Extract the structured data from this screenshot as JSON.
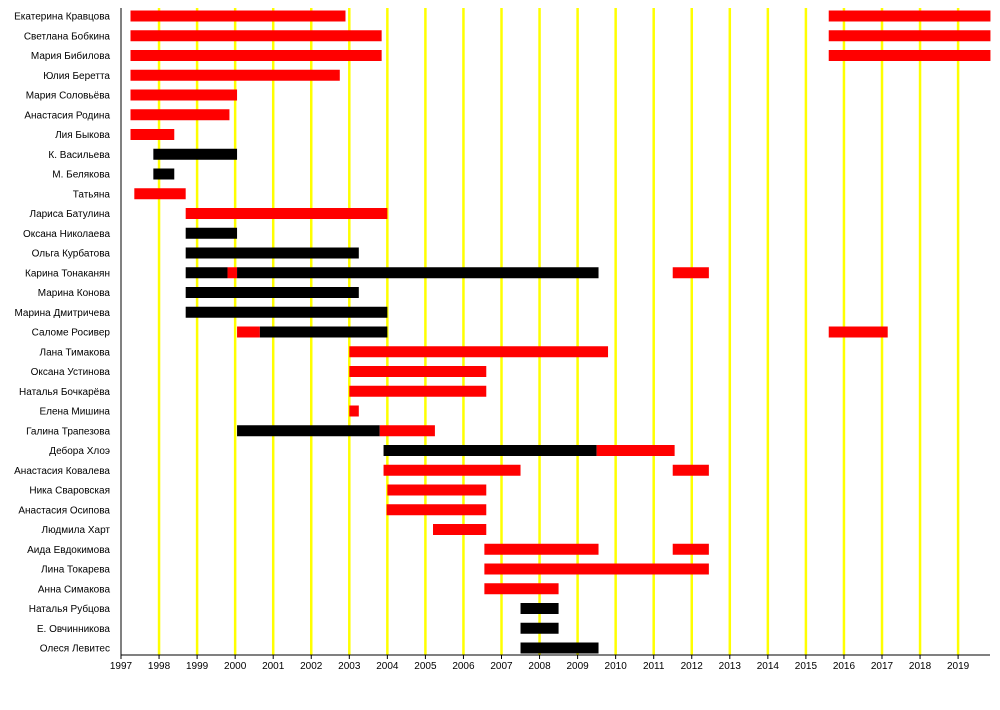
{
  "chart_data": {
    "type": "timeline",
    "title": "",
    "xlabel": "",
    "ylabel": "",
    "x_range": [
      1997,
      2019.85
    ],
    "x_ticks": [
      "1997",
      "1998",
      "1999",
      "2000",
      "2001",
      "2002",
      "2003",
      "2004",
      "2005",
      "2006",
      "2007",
      "2008",
      "2009",
      "2010",
      "2011",
      "2012",
      "2013",
      "2014",
      "2015",
      "2016",
      "2017",
      "2018",
      "2019"
    ],
    "colors": {
      "background": "#ffffff",
      "gridline": "#ffff00",
      "red": "#ff0000",
      "black": "#000000",
      "axis": "#000000"
    },
    "rows": [
      {
        "name": "Екатерина Кравцова",
        "segments": [
          {
            "start": 1997.25,
            "end": 2002.9,
            "color": "red"
          },
          {
            "start": 2015.6,
            "end": 2019.85,
            "color": "red"
          }
        ]
      },
      {
        "name": "Светлана Бобкина",
        "segments": [
          {
            "start": 1997.25,
            "end": 2003.85,
            "color": "red"
          },
          {
            "start": 2015.6,
            "end": 2019.85,
            "color": "red"
          }
        ]
      },
      {
        "name": "Мария Бибилова",
        "segments": [
          {
            "start": 1997.25,
            "end": 2003.85,
            "color": "red"
          },
          {
            "start": 2015.6,
            "end": 2019.85,
            "color": "red"
          }
        ]
      },
      {
        "name": "Юлия Беретта",
        "segments": [
          {
            "start": 1997.25,
            "end": 2002.75,
            "color": "red"
          }
        ]
      },
      {
        "name": "Мария Соловьёва",
        "segments": [
          {
            "start": 1997.25,
            "end": 2000.05,
            "color": "red"
          }
        ]
      },
      {
        "name": "Анастасия Родина",
        "segments": [
          {
            "start": 1997.25,
            "end": 1999.85,
            "color": "red"
          }
        ]
      },
      {
        "name": "Лия Быкова",
        "segments": [
          {
            "start": 1997.25,
            "end": 1998.4,
            "color": "red"
          }
        ]
      },
      {
        "name": "К. Васильева",
        "segments": [
          {
            "start": 1997.85,
            "end": 2000.05,
            "color": "black"
          }
        ]
      },
      {
        "name": "М. Белякова",
        "segments": [
          {
            "start": 1997.85,
            "end": 1998.4,
            "color": "black"
          }
        ]
      },
      {
        "name": "Татьяна",
        "segments": [
          {
            "start": 1997.35,
            "end": 1998.7,
            "color": "red"
          }
        ]
      },
      {
        "name": "Лариса Батулина",
        "segments": [
          {
            "start": 1998.7,
            "end": 2004.0,
            "color": "red"
          }
        ]
      },
      {
        "name": "Оксана Николаева",
        "segments": [
          {
            "start": 1998.7,
            "end": 2000.05,
            "color": "black"
          }
        ]
      },
      {
        "name": "Ольга Курбатова",
        "segments": [
          {
            "start": 1998.7,
            "end": 2003.25,
            "color": "black"
          }
        ]
      },
      {
        "name": "Карина Тонаканян",
        "segments": [
          {
            "start": 1998.7,
            "end": 1999.8,
            "color": "black"
          },
          {
            "start": 1999.8,
            "end": 2000.05,
            "color": "red"
          },
          {
            "start": 2000.05,
            "end": 2009.55,
            "color": "black"
          },
          {
            "start": 2011.5,
            "end": 2012.45,
            "color": "red"
          }
        ]
      },
      {
        "name": "Марина Конова",
        "segments": [
          {
            "start": 1998.7,
            "end": 2003.25,
            "color": "black"
          }
        ]
      },
      {
        "name": "Марина Дмитричева",
        "segments": [
          {
            "start": 1998.7,
            "end": 2004.0,
            "color": "black"
          }
        ]
      },
      {
        "name": "Саломе Росивер",
        "segments": [
          {
            "start": 2000.05,
            "end": 2000.65,
            "color": "red"
          },
          {
            "start": 2000.65,
            "end": 2004.0,
            "color": "black"
          },
          {
            "start": 2015.6,
            "end": 2017.15,
            "color": "red"
          }
        ]
      },
      {
        "name": "Лана Тимакова",
        "segments": [
          {
            "start": 2003.0,
            "end": 2009.8,
            "color": "red"
          }
        ]
      },
      {
        "name": "Оксана Устинова",
        "segments": [
          {
            "start": 2003.0,
            "end": 2006.6,
            "color": "red"
          }
        ]
      },
      {
        "name": "Наталья Бочкарёва",
        "segments": [
          {
            "start": 2003.0,
            "end": 2006.6,
            "color": "red"
          }
        ]
      },
      {
        "name": "Елена Мишина",
        "segments": [
          {
            "start": 2003.0,
            "end": 2003.25,
            "color": "red"
          }
        ]
      },
      {
        "name": "Галина Трапезова",
        "segments": [
          {
            "start": 2000.05,
            "end": 2003.8,
            "color": "black"
          },
          {
            "start": 2003.8,
            "end": 2005.25,
            "color": "red"
          }
        ]
      },
      {
        "name": "Дебора Хлоэ",
        "segments": [
          {
            "start": 2003.9,
            "end": 2009.5,
            "color": "black"
          },
          {
            "start": 2009.5,
            "end": 2011.55,
            "color": "red"
          }
        ]
      },
      {
        "name": "Анастасия Ковалева",
        "segments": [
          {
            "start": 2003.9,
            "end": 2007.5,
            "color": "red"
          },
          {
            "start": 2011.5,
            "end": 2012.45,
            "color": "red"
          }
        ]
      },
      {
        "name": "Ника Сваровская",
        "segments": [
          {
            "start": 2004.0,
            "end": 2006.6,
            "color": "red"
          }
        ]
      },
      {
        "name": "Анастасия Осипова",
        "segments": [
          {
            "start": 2003.98,
            "end": 2006.6,
            "color": "red"
          }
        ]
      },
      {
        "name": "Людмила Харт",
        "segments": [
          {
            "start": 2005.2,
            "end": 2006.6,
            "color": "red"
          }
        ]
      },
      {
        "name": "Аида Евдокимова",
        "segments": [
          {
            "start": 2006.55,
            "end": 2009.55,
            "color": "red"
          },
          {
            "start": 2011.5,
            "end": 2012.45,
            "color": "red"
          }
        ]
      },
      {
        "name": "Лина Токарева",
        "segments": [
          {
            "start": 2006.55,
            "end": 2012.45,
            "color": "red"
          }
        ]
      },
      {
        "name": "Анна Симакова",
        "segments": [
          {
            "start": 2006.55,
            "end": 2008.5,
            "color": "red"
          }
        ]
      },
      {
        "name": "Наталья Рубцова",
        "segments": [
          {
            "start": 2007.5,
            "end": 2008.5,
            "color": "black"
          }
        ]
      },
      {
        "name": "Е. Овчинникова",
        "segments": [
          {
            "start": 2007.5,
            "end": 2008.5,
            "color": "black"
          }
        ]
      },
      {
        "name": "Олеся Левитес",
        "segments": [
          {
            "start": 2007.5,
            "end": 2009.55,
            "color": "black"
          }
        ]
      }
    ]
  }
}
